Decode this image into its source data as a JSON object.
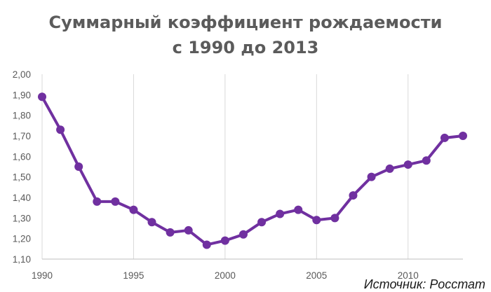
{
  "chart_data": {
    "type": "line",
    "title": [
      "Суммарный коэффициент рождаемости",
      "с 1990 до 2013"
    ],
    "xlabel": "",
    "ylabel": "",
    "x": [
      1990,
      1991,
      1992,
      1993,
      1994,
      1995,
      1996,
      1997,
      1998,
      1999,
      2000,
      2001,
      2002,
      2003,
      2004,
      2005,
      2006,
      2007,
      2008,
      2009,
      2010,
      2011,
      2012,
      2013
    ],
    "series": [
      {
        "values": [
          1.89,
          1.73,
          1.55,
          1.38,
          1.38,
          1.34,
          1.28,
          1.23,
          1.24,
          1.17,
          1.19,
          1.22,
          1.28,
          1.32,
          1.34,
          1.29,
          1.3,
          1.41,
          1.5,
          1.54,
          1.56,
          1.58,
          1.69,
          1.7
        ],
        "color": "#7030a0"
      }
    ],
    "ylim": [
      1.1,
      2.0
    ],
    "xlim": [
      1990,
      2013
    ],
    "y_ticks": [
      "1,10",
      "1,20",
      "1,30",
      "1,40",
      "1,50",
      "1,60",
      "1,70",
      "1,80",
      "1,90",
      "2,00"
    ],
    "x_ticks": [
      "1990",
      "1995",
      "2000",
      "2005",
      "2010"
    ],
    "grid": "vertical",
    "legend": "none"
  },
  "source_note": "Источник: Росстат"
}
